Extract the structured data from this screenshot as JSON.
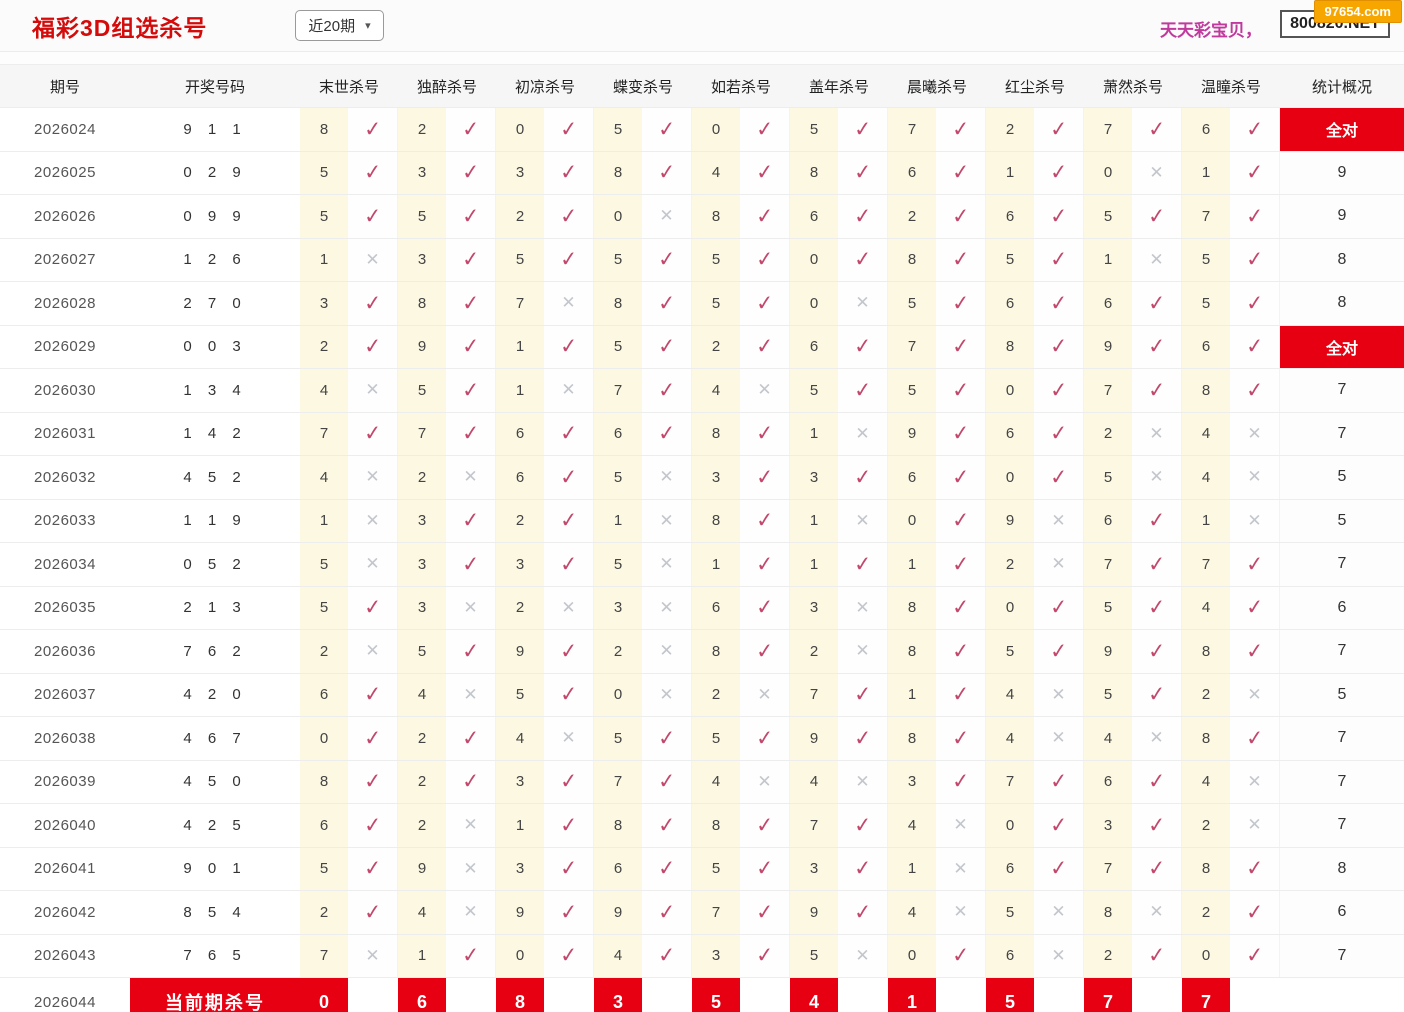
{
  "header": {
    "title": "福彩3D组选杀号",
    "range_select": "近20期",
    "promo": "天天彩宝贝，",
    "site": "800820.NET",
    "watermark": "97654.com"
  },
  "table": {
    "col_period": "期号",
    "col_numbers": "开奖号码",
    "kill_columns": [
      "末世杀号",
      "独醉杀号",
      "初凉杀号",
      "蝶变杀号",
      "如若杀号",
      "盖年杀号",
      "晨曦杀号",
      "红尘杀号",
      "萧然杀号",
      "温瞳杀号"
    ],
    "col_stats": "统计概况",
    "all_hit_label": "全对",
    "rows": [
      {
        "period": "2026024",
        "numbers": "911",
        "cells": [
          {
            "n": 8,
            "hit": true
          },
          {
            "n": 2,
            "hit": true
          },
          {
            "n": 0,
            "hit": true
          },
          {
            "n": 5,
            "hit": true
          },
          {
            "n": 0,
            "hit": true
          },
          {
            "n": 5,
            "hit": true
          },
          {
            "n": 7,
            "hit": true
          },
          {
            "n": 2,
            "hit": true
          },
          {
            "n": 7,
            "hit": true
          },
          {
            "n": 6,
            "hit": true
          }
        ],
        "stats": "全对",
        "all_hit": true
      },
      {
        "period": "2026025",
        "numbers": "029",
        "cells": [
          {
            "n": 5,
            "hit": true
          },
          {
            "n": 3,
            "hit": true
          },
          {
            "n": 3,
            "hit": true
          },
          {
            "n": 8,
            "hit": true
          },
          {
            "n": 4,
            "hit": true
          },
          {
            "n": 8,
            "hit": true
          },
          {
            "n": 6,
            "hit": true
          },
          {
            "n": 1,
            "hit": true
          },
          {
            "n": 0,
            "hit": false
          },
          {
            "n": 1,
            "hit": true
          }
        ],
        "stats": "9",
        "all_hit": false
      },
      {
        "period": "2026026",
        "numbers": "099",
        "cells": [
          {
            "n": 5,
            "hit": true
          },
          {
            "n": 5,
            "hit": true
          },
          {
            "n": 2,
            "hit": true
          },
          {
            "n": 0,
            "hit": false
          },
          {
            "n": 8,
            "hit": true
          },
          {
            "n": 6,
            "hit": true
          },
          {
            "n": 2,
            "hit": true
          },
          {
            "n": 6,
            "hit": true
          },
          {
            "n": 5,
            "hit": true
          },
          {
            "n": 7,
            "hit": true
          }
        ],
        "stats": "9",
        "all_hit": false
      },
      {
        "period": "2026027",
        "numbers": "126",
        "cells": [
          {
            "n": 1,
            "hit": false
          },
          {
            "n": 3,
            "hit": true
          },
          {
            "n": 5,
            "hit": true
          },
          {
            "n": 5,
            "hit": true
          },
          {
            "n": 5,
            "hit": true
          },
          {
            "n": 0,
            "hit": true
          },
          {
            "n": 8,
            "hit": true
          },
          {
            "n": 5,
            "hit": true
          },
          {
            "n": 1,
            "hit": false
          },
          {
            "n": 5,
            "hit": true
          }
        ],
        "stats": "8",
        "all_hit": false
      },
      {
        "period": "2026028",
        "numbers": "270",
        "cells": [
          {
            "n": 3,
            "hit": true
          },
          {
            "n": 8,
            "hit": true
          },
          {
            "n": 7,
            "hit": false
          },
          {
            "n": 8,
            "hit": true
          },
          {
            "n": 5,
            "hit": true
          },
          {
            "n": 0,
            "hit": false
          },
          {
            "n": 5,
            "hit": true
          },
          {
            "n": 6,
            "hit": true
          },
          {
            "n": 6,
            "hit": true
          },
          {
            "n": 5,
            "hit": true
          }
        ],
        "stats": "8",
        "all_hit": false
      },
      {
        "period": "2026029",
        "numbers": "003",
        "cells": [
          {
            "n": 2,
            "hit": true
          },
          {
            "n": 9,
            "hit": true
          },
          {
            "n": 1,
            "hit": true
          },
          {
            "n": 5,
            "hit": true
          },
          {
            "n": 2,
            "hit": true
          },
          {
            "n": 6,
            "hit": true
          },
          {
            "n": 7,
            "hit": true
          },
          {
            "n": 8,
            "hit": true
          },
          {
            "n": 9,
            "hit": true
          },
          {
            "n": 6,
            "hit": true
          }
        ],
        "stats": "全对",
        "all_hit": true
      },
      {
        "period": "2026030",
        "numbers": "134",
        "cells": [
          {
            "n": 4,
            "hit": false
          },
          {
            "n": 5,
            "hit": true
          },
          {
            "n": 1,
            "hit": false
          },
          {
            "n": 7,
            "hit": true
          },
          {
            "n": 4,
            "hit": false
          },
          {
            "n": 5,
            "hit": true
          },
          {
            "n": 5,
            "hit": true
          },
          {
            "n": 0,
            "hit": true
          },
          {
            "n": 7,
            "hit": true
          },
          {
            "n": 8,
            "hit": true
          }
        ],
        "stats": "7",
        "all_hit": false
      },
      {
        "period": "2026031",
        "numbers": "142",
        "cells": [
          {
            "n": 7,
            "hit": true
          },
          {
            "n": 7,
            "hit": true
          },
          {
            "n": 6,
            "hit": true
          },
          {
            "n": 6,
            "hit": true
          },
          {
            "n": 8,
            "hit": true
          },
          {
            "n": 1,
            "hit": false
          },
          {
            "n": 9,
            "hit": true
          },
          {
            "n": 6,
            "hit": true
          },
          {
            "n": 2,
            "hit": false
          },
          {
            "n": 4,
            "hit": false
          }
        ],
        "stats": "7",
        "all_hit": false
      },
      {
        "period": "2026032",
        "numbers": "452",
        "cells": [
          {
            "n": 4,
            "hit": false
          },
          {
            "n": 2,
            "hit": false
          },
          {
            "n": 6,
            "hit": true
          },
          {
            "n": 5,
            "hit": false
          },
          {
            "n": 3,
            "hit": true
          },
          {
            "n": 3,
            "hit": true
          },
          {
            "n": 6,
            "hit": true
          },
          {
            "n": 0,
            "hit": true
          },
          {
            "n": 5,
            "hit": false
          },
          {
            "n": 4,
            "hit": false
          }
        ],
        "stats": "5",
        "all_hit": false
      },
      {
        "period": "2026033",
        "numbers": "119",
        "cells": [
          {
            "n": 1,
            "hit": false
          },
          {
            "n": 3,
            "hit": true
          },
          {
            "n": 2,
            "hit": true
          },
          {
            "n": 1,
            "hit": false
          },
          {
            "n": 8,
            "hit": true
          },
          {
            "n": 1,
            "hit": false
          },
          {
            "n": 0,
            "hit": true
          },
          {
            "n": 9,
            "hit": false
          },
          {
            "n": 6,
            "hit": true
          },
          {
            "n": 1,
            "hit": false
          }
        ],
        "stats": "5",
        "all_hit": false
      },
      {
        "period": "2026034",
        "numbers": "052",
        "cells": [
          {
            "n": 5,
            "hit": false
          },
          {
            "n": 3,
            "hit": true
          },
          {
            "n": 3,
            "hit": true
          },
          {
            "n": 5,
            "hit": false
          },
          {
            "n": 1,
            "hit": true
          },
          {
            "n": 1,
            "hit": true
          },
          {
            "n": 1,
            "hit": true
          },
          {
            "n": 2,
            "hit": false
          },
          {
            "n": 7,
            "hit": true
          },
          {
            "n": 7,
            "hit": true
          }
        ],
        "stats": "7",
        "all_hit": false
      },
      {
        "period": "2026035",
        "numbers": "213",
        "cells": [
          {
            "n": 5,
            "hit": true
          },
          {
            "n": 3,
            "hit": false
          },
          {
            "n": 2,
            "hit": false
          },
          {
            "n": 3,
            "hit": false
          },
          {
            "n": 6,
            "hit": true
          },
          {
            "n": 3,
            "hit": false
          },
          {
            "n": 8,
            "hit": true
          },
          {
            "n": 0,
            "hit": true
          },
          {
            "n": 5,
            "hit": true
          },
          {
            "n": 4,
            "hit": true
          }
        ],
        "stats": "6",
        "all_hit": false
      },
      {
        "period": "2026036",
        "numbers": "762",
        "cells": [
          {
            "n": 2,
            "hit": false
          },
          {
            "n": 5,
            "hit": true
          },
          {
            "n": 9,
            "hit": true
          },
          {
            "n": 2,
            "hit": false
          },
          {
            "n": 8,
            "hit": true
          },
          {
            "n": 2,
            "hit": false
          },
          {
            "n": 8,
            "hit": true
          },
          {
            "n": 5,
            "hit": true
          },
          {
            "n": 9,
            "hit": true
          },
          {
            "n": 8,
            "hit": true
          }
        ],
        "stats": "7",
        "all_hit": false
      },
      {
        "period": "2026037",
        "numbers": "420",
        "cells": [
          {
            "n": 6,
            "hit": true
          },
          {
            "n": 4,
            "hit": false
          },
          {
            "n": 5,
            "hit": true
          },
          {
            "n": 0,
            "hit": false
          },
          {
            "n": 2,
            "hit": false
          },
          {
            "n": 7,
            "hit": true
          },
          {
            "n": 1,
            "hit": true
          },
          {
            "n": 4,
            "hit": false
          },
          {
            "n": 5,
            "hit": true
          },
          {
            "n": 2,
            "hit": false
          }
        ],
        "stats": "5",
        "all_hit": false
      },
      {
        "period": "2026038",
        "numbers": "467",
        "cells": [
          {
            "n": 0,
            "hit": true
          },
          {
            "n": 2,
            "hit": true
          },
          {
            "n": 4,
            "hit": false
          },
          {
            "n": 5,
            "hit": true
          },
          {
            "n": 5,
            "hit": true
          },
          {
            "n": 9,
            "hit": true
          },
          {
            "n": 8,
            "hit": true
          },
          {
            "n": 4,
            "hit": false
          },
          {
            "n": 4,
            "hit": false
          },
          {
            "n": 8,
            "hit": true
          }
        ],
        "stats": "7",
        "all_hit": false
      },
      {
        "period": "2026039",
        "numbers": "450",
        "cells": [
          {
            "n": 8,
            "hit": true
          },
          {
            "n": 2,
            "hit": true
          },
          {
            "n": 3,
            "hit": true
          },
          {
            "n": 7,
            "hit": true
          },
          {
            "n": 4,
            "hit": false
          },
          {
            "n": 4,
            "hit": false
          },
          {
            "n": 3,
            "hit": true
          },
          {
            "n": 7,
            "hit": true
          },
          {
            "n": 6,
            "hit": true
          },
          {
            "n": 4,
            "hit": false
          }
        ],
        "stats": "7",
        "all_hit": false
      },
      {
        "period": "2026040",
        "numbers": "425",
        "cells": [
          {
            "n": 6,
            "hit": true
          },
          {
            "n": 2,
            "hit": false
          },
          {
            "n": 1,
            "hit": true
          },
          {
            "n": 8,
            "hit": true
          },
          {
            "n": 8,
            "hit": true
          },
          {
            "n": 7,
            "hit": true
          },
          {
            "n": 4,
            "hit": false
          },
          {
            "n": 0,
            "hit": true
          },
          {
            "n": 3,
            "hit": true
          },
          {
            "n": 2,
            "hit": false
          }
        ],
        "stats": "7",
        "all_hit": false
      },
      {
        "period": "2026041",
        "numbers": "901",
        "cells": [
          {
            "n": 5,
            "hit": true
          },
          {
            "n": 9,
            "hit": false
          },
          {
            "n": 3,
            "hit": true
          },
          {
            "n": 6,
            "hit": true
          },
          {
            "n": 5,
            "hit": true
          },
          {
            "n": 3,
            "hit": true
          },
          {
            "n": 1,
            "hit": false
          },
          {
            "n": 6,
            "hit": true
          },
          {
            "n": 7,
            "hit": true
          },
          {
            "n": 8,
            "hit": true
          }
        ],
        "stats": "8",
        "all_hit": false
      },
      {
        "period": "2026042",
        "numbers": "854",
        "cells": [
          {
            "n": 2,
            "hit": true
          },
          {
            "n": 4,
            "hit": false
          },
          {
            "n": 9,
            "hit": true
          },
          {
            "n": 9,
            "hit": true
          },
          {
            "n": 7,
            "hit": true
          },
          {
            "n": 9,
            "hit": true
          },
          {
            "n": 4,
            "hit": false
          },
          {
            "n": 5,
            "hit": false
          },
          {
            "n": 8,
            "hit": false
          },
          {
            "n": 2,
            "hit": true
          }
        ],
        "stats": "6",
        "all_hit": false
      },
      {
        "period": "2026043",
        "numbers": "765",
        "cells": [
          {
            "n": 7,
            "hit": false
          },
          {
            "n": 1,
            "hit": true
          },
          {
            "n": 0,
            "hit": true
          },
          {
            "n": 4,
            "hit": true
          },
          {
            "n": 3,
            "hit": true
          },
          {
            "n": 5,
            "hit": false
          },
          {
            "n": 0,
            "hit": true
          },
          {
            "n": 6,
            "hit": false
          },
          {
            "n": 2,
            "hit": true
          },
          {
            "n": 0,
            "hit": true
          }
        ],
        "stats": "7",
        "all_hit": false
      }
    ],
    "current_row": {
      "period": "2026044",
      "label": "当前期杀号",
      "kills": [
        0,
        6,
        8,
        3,
        5,
        4,
        1,
        5,
        7,
        7
      ]
    }
  },
  "marks": {
    "hit_glyph": "✓",
    "miss_glyph": "✕"
  },
  "colors": {
    "accent_red": "#e60012",
    "title_red": "#d30b0b",
    "hit_check": "#c2476b",
    "miss_x": "#c3c7cd",
    "cell_yellow": "#fcf8e2",
    "promo_pink": "#c03a9e",
    "watermark_orange": "#f7a600"
  }
}
